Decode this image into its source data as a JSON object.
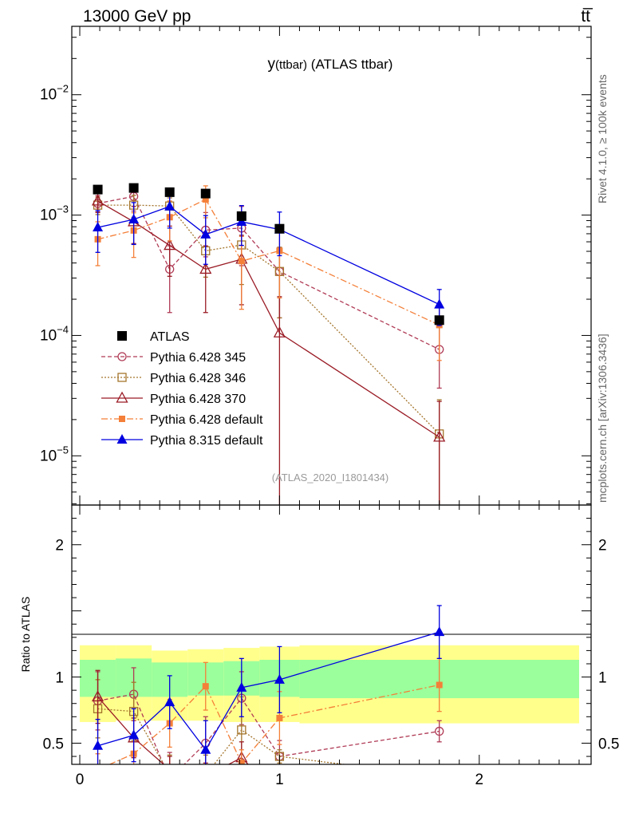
{
  "header": {
    "left": "13000 GeV pp",
    "right": "tt̅"
  },
  "side_labels": {
    "rivet": "Rivet 4.1.0, ≥ 100k events",
    "mcplots": "mcplots.cern.ch [arXiv:1306.3436]"
  },
  "chart_data": {
    "type": "line",
    "title": "y(ttbar) (ATLAS ttbar)",
    "title_main": "y",
    "title_sub": "(ttbar)",
    "title_rest": " (ATLAS ttbar)",
    "watermark": "(ATLAS_2020_I1801434)",
    "main_panel": {
      "yscale": "log",
      "ylim": [
        3.9e-06,
        0.037
      ],
      "y_ticks": [
        {
          "value": 1e-05,
          "base": "10",
          "exp": "−5"
        },
        {
          "value": 0.0001,
          "base": "10",
          "exp": "−4"
        },
        {
          "value": 0.001,
          "base": "10",
          "exp": "−3"
        },
        {
          "value": 0.01,
          "base": "10",
          "exp": "−2"
        }
      ]
    },
    "ratio_panel": {
      "ylabel": "Ratio to ATLAS",
      "ylim": [
        0.34,
        2.3
      ],
      "y_ticks": [
        {
          "value": 0.5,
          "label": "0.5"
        },
        {
          "value": 1,
          "label": "1"
        },
        {
          "value": 2,
          "label": "2"
        }
      ]
    },
    "xlim": [
      -0.04,
      2.56
    ],
    "x_ticks": [
      {
        "value": 0,
        "label": "0"
      },
      {
        "value": 1,
        "label": "1"
      },
      {
        "value": 2,
        "label": "2"
      }
    ],
    "band_edges": [
      0,
      0.18,
      0.36,
      0.54,
      0.72,
      0.9,
      1.1,
      2.5
    ],
    "band_inner": [
      [
        0.85,
        1.13
      ],
      [
        0.85,
        1.14
      ],
      [
        0.85,
        1.11
      ],
      [
        0.86,
        1.11
      ],
      [
        0.86,
        1.12
      ],
      [
        0.85,
        1.13
      ],
      [
        0.84,
        1.13
      ]
    ],
    "band_outer": [
      [
        0.66,
        1.24
      ],
      [
        0.67,
        1.24
      ],
      [
        0.67,
        1.2
      ],
      [
        0.67,
        1.21
      ],
      [
        0.66,
        1.22
      ],
      [
        0.66,
        1.23
      ],
      [
        0.65,
        1.24
      ]
    ],
    "series": [
      {
        "name": "ATLAS",
        "color": "#000000",
        "marker": "square-filled",
        "dash": "none",
        "x": [
          0.09,
          0.27,
          0.45,
          0.63,
          0.81,
          1.0,
          1.8
        ],
        "values": [
          0.00163,
          0.00168,
          0.00155,
          0.00151,
          0.00098,
          0.00077,
          0.000134
        ],
        "errors": [
          0,
          0,
          0,
          0,
          0,
          0,
          0
        ]
      },
      {
        "name": "Pythia 6.428 345",
        "color": "#b03b56",
        "marker": "circle-open",
        "dash": "5,3",
        "x": [
          0.09,
          0.27,
          0.45,
          0.63,
          0.81,
          1.0,
          1.8
        ],
        "values": [
          0.00125,
          0.00143,
          0.000355,
          0.00075,
          0.00078,
          0.00034,
          7.65e-05
        ],
        "errors": [
          0.0002,
          0.00035,
          0.0002,
          0.0003,
          0.0004,
          0.0002,
          4e-05
        ],
        "ratio": [
          0.82,
          0.87,
          0.23,
          0.5,
          0.84,
          0.4,
          0.59
        ],
        "ratio_err": [
          0.22,
          0.2,
          0.2,
          0.2,
          0.2,
          0.12,
          0.08
        ]
      },
      {
        "name": "Pythia 6.428 346",
        "color": "#a4752c",
        "marker": "square-open",
        "dash": "2,2",
        "x": [
          0.09,
          0.27,
          0.45,
          0.63,
          0.81,
          1.0,
          1.8
        ],
        "values": [
          0.00121,
          0.00121,
          0.00119,
          0.000505,
          0.000565,
          0.00034,
          1.52e-05
        ],
        "errors": [
          0.0002,
          0.00025,
          0.0002,
          0.0002,
          0.0003,
          0.0002,
          1.4e-05
        ],
        "ratio": [
          0.76,
          0.74,
          0.26,
          0.26,
          0.6,
          0.4,
          0.25
        ],
        "ratio_err": [
          0.22,
          0.22,
          0.15,
          0.15,
          0.25,
          0.05,
          0.05
        ]
      },
      {
        "name": "Pythia 6.428 370",
        "color": "#9a1b25",
        "marker": "triangle-open",
        "dash": "none",
        "x": [
          0.09,
          0.27,
          0.45,
          0.63,
          0.81,
          1.0,
          1.8
        ],
        "values": [
          0.00131,
          0.00088,
          0.00056,
          0.000355,
          0.00043,
          0.000105,
          1.43e-05
        ],
        "errors": [
          0.00025,
          0.0003,
          0.00025,
          0.0002,
          0.00025,
          0.000105,
          1.4e-05
        ],
        "ratio": [
          0.85,
          0.54,
          0.3,
          0.25,
          0.39,
          0.1,
          0.1
        ],
        "ratio_err": [
          0.2,
          0.15,
          0.1,
          0.1,
          0.12,
          0.05,
          0.05
        ]
      },
      {
        "name": "Pythia 6.428 default",
        "color": "#f47f38",
        "marker": "square-filled",
        "dash": "8,3,2,3",
        "x": [
          0.09,
          0.27,
          0.45,
          0.63,
          0.81,
          1.0,
          1.8
        ],
        "values": [
          0.00063,
          0.000745,
          0.00096,
          0.00135,
          0.000415,
          0.000505,
          0.000122
        ],
        "errors": [
          0.00025,
          0.0003,
          0.00035,
          0.0004,
          0.00025,
          0.0003,
          6e-05
        ],
        "ratio": [
          0.3,
          0.42,
          0.65,
          0.93,
          0.35,
          0.69,
          0.94
        ],
        "ratio_err": [
          0.12,
          0.12,
          0.18,
          0.18,
          0.1,
          0.2,
          0.2
        ]
      },
      {
        "name": "Pythia 8.315 default",
        "color": "#0000e0",
        "marker": "triangle-filled",
        "dash": "none",
        "x": [
          0.09,
          0.27,
          0.45,
          0.63,
          0.81,
          1.0,
          1.8
        ],
        "values": [
          0.00079,
          0.00092,
          0.00118,
          0.00069,
          0.00088,
          0.00076,
          0.000181
        ],
        "errors": [
          0.0003,
          0.00035,
          0.0004,
          0.0003,
          0.00032,
          0.0003,
          6e-05
        ],
        "ratio": [
          0.48,
          0.56,
          0.81,
          0.45,
          0.92,
          0.98,
          1.34
        ],
        "ratio_err": [
          0.2,
          0.2,
          0.2,
          0.22,
          0.22,
          0.25,
          0.2
        ]
      }
    ]
  }
}
